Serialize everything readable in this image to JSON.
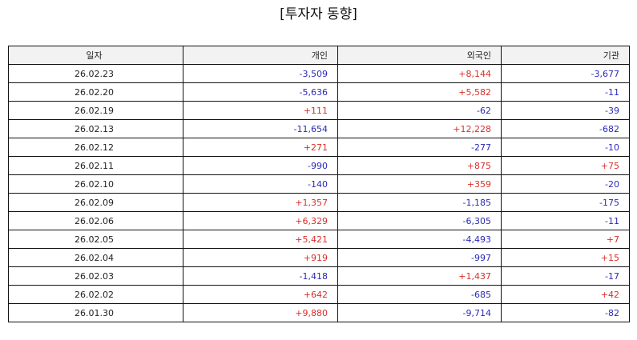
{
  "title": "[투자자 동향]",
  "columns": [
    "일자",
    "개인",
    "외국인",
    "기관"
  ],
  "colors": {
    "positive": "#d9302a",
    "negative": "#2a2ab8"
  },
  "rows": [
    [
      "26.02.23",
      "-3,509",
      "+8,144",
      "-3,677"
    ],
    [
      "26.02.20",
      "-5,636",
      "+5,582",
      "-11"
    ],
    [
      "26.02.19",
      "+111",
      "-62",
      "-39"
    ],
    [
      "26.02.13",
      "-11,654",
      "+12,228",
      "-682"
    ],
    [
      "26.02.12",
      "+271",
      "-277",
      "-10"
    ],
    [
      "26.02.11",
      "-990",
      "+875",
      "+75"
    ],
    [
      "26.02.10",
      "-140",
      "+359",
      "-20"
    ],
    [
      "26.02.09",
      "+1,357",
      "-1,185",
      "-175"
    ],
    [
      "26.02.06",
      "+6,329",
      "-6,305",
      "-11"
    ],
    [
      "26.02.05",
      "+5,421",
      "-4,493",
      "+7"
    ],
    [
      "26.02.04",
      "+919",
      "-997",
      "+15"
    ],
    [
      "26.02.03",
      "-1,418",
      "+1,437",
      "-17"
    ],
    [
      "26.02.02",
      "+642",
      "-685",
      "+42"
    ],
    [
      "26.01.30",
      "+9,880",
      "-9,714",
      "-82"
    ]
  ]
}
